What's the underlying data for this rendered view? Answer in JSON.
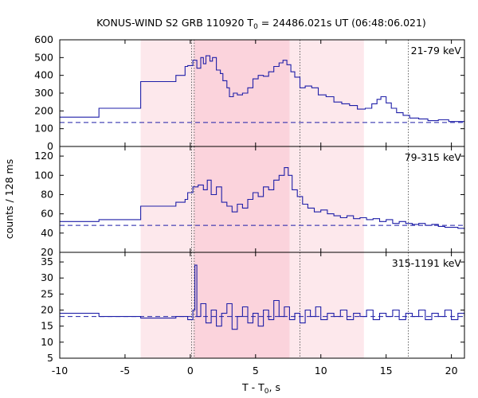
{
  "chart_data": {
    "type": "line",
    "title": "KONUS-WIND S2 GRB 110920 T",
    "title_sub": "0",
    "title_tail": " = 24486.021s UT (06:48:06.021)",
    "xlabel": "T - T",
    "xlabel_sub": "0",
    "xlabel_tail": ", s",
    "ylabel": "counts / 128 ms",
    "xlim": [
      -10,
      21
    ],
    "xticks": [
      -10,
      -5,
      0,
      5,
      10,
      15,
      20
    ],
    "shaded_outer": [
      -3.8,
      13.3
    ],
    "shaded_inner": [
      0.3,
      7.6
    ],
    "vlines": [
      0.1,
      0.3,
      8.4,
      16.7
    ],
    "colors": {
      "line": "#1f1fa8",
      "outer_shade": "#fde8ec",
      "inner_shade": "#fbd3dc"
    },
    "panels": [
      {
        "label": "21-79 keV",
        "ylim": [
          0,
          600
        ],
        "yticks": [
          0,
          100,
          200,
          300,
          400,
          500,
          600
        ],
        "background": 135,
        "step_segments": [
          [
            -10,
            165
          ],
          [
            -7.0,
            215
          ],
          [
            -3.8,
            365
          ],
          [
            -1.1,
            400
          ],
          [
            -0.4,
            450
          ]
        ],
        "series": [
          [
            -0.2,
            455
          ],
          [
            0.2,
            485
          ],
          [
            0.5,
            440
          ],
          [
            0.8,
            500
          ],
          [
            1.0,
            465
          ],
          [
            1.2,
            510
          ],
          [
            1.5,
            480
          ],
          [
            1.7,
            500
          ],
          [
            2.0,
            430
          ],
          [
            2.3,
            410
          ],
          [
            2.5,
            370
          ],
          [
            2.8,
            330
          ],
          [
            3.0,
            280
          ],
          [
            3.3,
            300
          ],
          [
            3.6,
            290
          ],
          [
            4.0,
            300
          ],
          [
            4.4,
            330
          ],
          [
            4.8,
            380
          ],
          [
            5.2,
            400
          ],
          [
            5.6,
            395
          ],
          [
            6.0,
            420
          ],
          [
            6.4,
            450
          ],
          [
            6.8,
            470
          ],
          [
            7.1,
            485
          ],
          [
            7.4,
            460
          ],
          [
            7.7,
            420
          ],
          [
            8.0,
            390
          ],
          [
            8.4,
            330
          ],
          [
            8.8,
            340
          ],
          [
            9.3,
            330
          ],
          [
            9.8,
            290
          ],
          [
            10.4,
            280
          ],
          [
            11.0,
            250
          ],
          [
            11.6,
            240
          ],
          [
            12.2,
            230
          ],
          [
            12.8,
            210
          ],
          [
            13.4,
            215
          ],
          [
            13.9,
            240
          ],
          [
            14.3,
            265
          ],
          [
            14.6,
            280
          ],
          [
            15.0,
            245
          ],
          [
            15.4,
            215
          ],
          [
            15.8,
            190
          ],
          [
            16.3,
            175
          ],
          [
            16.8,
            160
          ],
          [
            17.5,
            155
          ],
          [
            18.2,
            145
          ],
          [
            19.0,
            150
          ],
          [
            19.8,
            140
          ],
          [
            20.5,
            140
          ],
          [
            21.0,
            138
          ]
        ]
      },
      {
        "label": "79-315 keV",
        "ylim": [
          20,
          130
        ],
        "yticks": [
          20,
          40,
          60,
          80,
          100,
          120
        ],
        "background": 48,
        "step_segments": [
          [
            -10,
            52
          ],
          [
            -7.0,
            54
          ],
          [
            -3.8,
            68
          ],
          [
            -1.1,
            72
          ],
          [
            -0.4,
            75
          ]
        ],
        "series": [
          [
            -0.2,
            82
          ],
          [
            0.2,
            88
          ],
          [
            0.6,
            90
          ],
          [
            1.0,
            85
          ],
          [
            1.3,
            95
          ],
          [
            1.6,
            80
          ],
          [
            2.0,
            88
          ],
          [
            2.4,
            72
          ],
          [
            2.8,
            68
          ],
          [
            3.2,
            62
          ],
          [
            3.6,
            70
          ],
          [
            4.0,
            66
          ],
          [
            4.4,
            75
          ],
          [
            4.8,
            82
          ],
          [
            5.2,
            78
          ],
          [
            5.6,
            88
          ],
          [
            6.0,
            85
          ],
          [
            6.4,
            95
          ],
          [
            6.8,
            100
          ],
          [
            7.2,
            108
          ],
          [
            7.5,
            100
          ],
          [
            7.8,
            85
          ],
          [
            8.2,
            78
          ],
          [
            8.6,
            70
          ],
          [
            9.0,
            66
          ],
          [
            9.5,
            62
          ],
          [
            10.0,
            64
          ],
          [
            10.5,
            60
          ],
          [
            11.0,
            58
          ],
          [
            11.5,
            56
          ],
          [
            12.0,
            58
          ],
          [
            12.5,
            55
          ],
          [
            13.0,
            56
          ],
          [
            13.5,
            54
          ],
          [
            14.0,
            55
          ],
          [
            14.5,
            52
          ],
          [
            15.0,
            54
          ],
          [
            15.5,
            50
          ],
          [
            16.0,
            52
          ],
          [
            16.5,
            50
          ],
          [
            17.0,
            49
          ],
          [
            17.5,
            50
          ],
          [
            18.0,
            48
          ],
          [
            18.5,
            49
          ],
          [
            19.0,
            47
          ],
          [
            19.5,
            46
          ],
          [
            20.0,
            46
          ],
          [
            20.5,
            45
          ],
          [
            21.0,
            44
          ]
        ]
      },
      {
        "label": "315-1191 keV",
        "ylim": [
          5,
          38
        ],
        "yticks": [
          5,
          10,
          15,
          20,
          25,
          30,
          35
        ],
        "background": 18,
        "step_segments": [
          [
            -10,
            19
          ],
          [
            -7.0,
            18
          ],
          [
            -3.8,
            17.5
          ],
          [
            -1.1,
            18
          ]
        ],
        "series": [
          [
            -0.2,
            17
          ],
          [
            0.2,
            20
          ],
          [
            0.35,
            34
          ],
          [
            0.5,
            18
          ],
          [
            0.8,
            22
          ],
          [
            1.2,
            16
          ],
          [
            1.6,
            20
          ],
          [
            2.0,
            15
          ],
          [
            2.4,
            19
          ],
          [
            2.8,
            22
          ],
          [
            3.2,
            14
          ],
          [
            3.6,
            18
          ],
          [
            4.0,
            21
          ],
          [
            4.4,
            16
          ],
          [
            4.8,
            19
          ],
          [
            5.2,
            15
          ],
          [
            5.6,
            20
          ],
          [
            6.0,
            17
          ],
          [
            6.4,
            23
          ],
          [
            6.8,
            18
          ],
          [
            7.2,
            21
          ],
          [
            7.6,
            17
          ],
          [
            8.0,
            19
          ],
          [
            8.4,
            16
          ],
          [
            8.8,
            20
          ],
          [
            9.2,
            18
          ],
          [
            9.6,
            21
          ],
          [
            10.0,
            17
          ],
          [
            10.5,
            19
          ],
          [
            11.0,
            18
          ],
          [
            11.5,
            20
          ],
          [
            12.0,
            17
          ],
          [
            12.5,
            19
          ],
          [
            13.0,
            18
          ],
          [
            13.5,
            20
          ],
          [
            14.0,
            17
          ],
          [
            14.5,
            19
          ],
          [
            15.0,
            18
          ],
          [
            15.5,
            20
          ],
          [
            16.0,
            17
          ],
          [
            16.5,
            19
          ],
          [
            17.0,
            18
          ],
          [
            17.5,
            20
          ],
          [
            18.0,
            17
          ],
          [
            18.5,
            19
          ],
          [
            19.0,
            18
          ],
          [
            19.5,
            20
          ],
          [
            20.0,
            17
          ],
          [
            20.5,
            19
          ],
          [
            21.0,
            18
          ]
        ]
      }
    ]
  }
}
